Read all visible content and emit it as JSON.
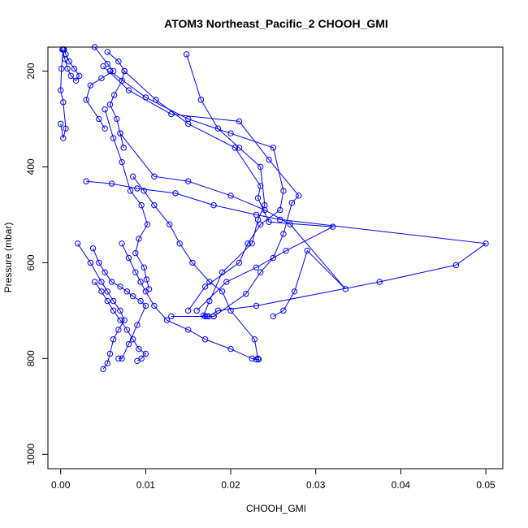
{
  "chart_data": {
    "type": "line",
    "title": "ATOM3 Northeast_Pacific_2 CHOOH_GMI",
    "xlabel": "CHOOH_GMI",
    "ylabel": "Pressure (mbar)",
    "xlim": [
      -0.0015,
      0.052
    ],
    "ylim": [
      1030,
      150
    ],
    "y_reversed": true,
    "x_ticks": [
      "0.00",
      "0.01",
      "0.02",
      "0.03",
      "0.04",
      "0.05"
    ],
    "x_tick_values": [
      0.0,
      0.01,
      0.02,
      0.03,
      0.04,
      0.05
    ],
    "y_ticks": [
      "200",
      "400",
      "600",
      "800",
      "1000"
    ],
    "y_tick_values": [
      200,
      400,
      600,
      800,
      1000
    ],
    "marker": "open-circle",
    "color": "#0000ff",
    "series": [
      {
        "x": [
          0.0002,
          0.0005,
          0.0008,
          0.0012,
          0.0018,
          0.0022,
          0.0016,
          0.001,
          0.0006,
          0.0004
        ],
        "y": [
          155,
          175,
          195,
          210,
          220,
          210,
          195,
          180,
          165,
          155
        ]
      },
      {
        "x": [
          0.0003,
          0.0001,
          0.0,
          0.0003,
          0.0006,
          0.0003,
          0.0
        ],
        "y": [
          155,
          195,
          240,
          265,
          320,
          340,
          310
        ]
      },
      {
        "x": [
          0.004,
          0.0055,
          0.0062,
          0.0048,
          0.0035,
          0.003,
          0.0045,
          0.0052
        ],
        "y": [
          150,
          185,
          200,
          215,
          230,
          260,
          300,
          320
        ]
      },
      {
        "x": [
          0.0055,
          0.0068,
          0.0075,
          0.0072,
          0.0063,
          0.0058,
          0.0066,
          0.007,
          0.0074
        ],
        "y": [
          160,
          180,
          200,
          220,
          250,
          270,
          300,
          330,
          360
        ]
      },
      {
        "x": [
          0.0148,
          0.0165,
          0.0185,
          0.021,
          0.0235,
          0.024,
          0.0232,
          0.0225,
          0.019,
          0.0175,
          0.0168,
          0.0172,
          0.018
        ],
        "y": [
          165,
          260,
          320,
          360,
          400,
          480,
          510,
          560,
          620,
          680,
          710,
          712,
          712
        ]
      },
      {
        "x": [
          0.0058,
          0.01,
          0.015,
          0.02,
          0.025,
          0.0262,
          0.0258,
          0.0235,
          0.022,
          0.021,
          0.017,
          0.015
        ],
        "y": [
          200,
          255,
          300,
          330,
          360,
          450,
          490,
          520,
          560,
          600,
          650,
          700
        ]
      },
      {
        "x": [
          0.005,
          0.008,
          0.013,
          0.021,
          0.0245,
          0.028,
          0.0272,
          0.0262,
          0.025,
          0.0235,
          0.0218,
          0.018,
          0.013
        ],
        "y": [
          190,
          240,
          290,
          305,
          385,
          460,
          475,
          540,
          590,
          620,
          665,
          712,
          712
        ]
      },
      {
        "x": [
          0.0075,
          0.0112,
          0.015,
          0.0205,
          0.0235,
          0.0232,
          0.0245,
          0.032,
          0.0265,
          0.023,
          0.0195,
          0.016
        ],
        "y": [
          200,
          260,
          310,
          360,
          440,
          465,
          515,
          525,
          575,
          610,
          640,
          700
        ]
      },
      {
        "x": [
          0.0052,
          0.0062,
          0.0072,
          0.0082,
          0.0095,
          0.0102,
          0.0092,
          0.0088,
          0.0098,
          0.0101,
          0.0104
        ],
        "y": [
          280,
          340,
          390,
          450,
          480,
          520,
          550,
          580,
          610,
          635,
          655
        ]
      },
      {
        "x": [
          0.003,
          0.006,
          0.009,
          0.0135,
          0.018,
          0.023,
          0.0258,
          0.05,
          0.0465,
          0.0375,
          0.023,
          0.0185,
          0.0174,
          0.017
        ],
        "y": [
          430,
          435,
          445,
          455,
          480,
          500,
          510,
          560,
          605,
          640,
          690,
          700,
          712,
          712
        ]
      },
      {
        "x": [
          0.007,
          0.011,
          0.015,
          0.02,
          0.024,
          0.027,
          0.0335,
          0.029,
          0.0275,
          0.0262,
          0.025
        ],
        "y": [
          330,
          420,
          430,
          460,
          490,
          520,
          655,
          575,
          660,
          700,
          712
        ]
      },
      {
        "x": [
          0.0085,
          0.0098,
          0.011,
          0.0128,
          0.014,
          0.0155,
          0.0175,
          0.019,
          0.02,
          0.0228,
          0.0232
        ],
        "y": [
          420,
          450,
          480,
          520,
          560,
          600,
          640,
          660,
          700,
          760,
          800
        ]
      },
      {
        "x": [
          0.0038,
          0.0045,
          0.0052,
          0.006,
          0.007,
          0.0078,
          0.0085,
          0.0094,
          0.01,
          0.009,
          0.008,
          0.0072,
          0.0068
        ],
        "y": [
          570,
          600,
          620,
          640,
          650,
          660,
          670,
          680,
          690,
          730,
          770,
          800,
          800
        ]
      },
      {
        "x": [
          0.0072,
          0.008,
          0.0088,
          0.0094,
          0.01,
          0.011,
          0.0125,
          0.015,
          0.017,
          0.02,
          0.0225,
          0.023,
          0.0233
        ],
        "y": [
          560,
          590,
          620,
          640,
          660,
          690,
          720,
          740,
          760,
          780,
          800,
          802,
          802
        ]
      },
      {
        "x": [
          0.002,
          0.0035,
          0.0048,
          0.0055,
          0.0062,
          0.007,
          0.0075,
          0.0068,
          0.0062,
          0.0058,
          0.0055,
          0.005
        ],
        "y": [
          560,
          600,
          640,
          660,
          680,
          700,
          720,
          740,
          760,
          790,
          810,
          822
        ]
      },
      {
        "x": [
          0.004,
          0.0048,
          0.0055,
          0.0062,
          0.007,
          0.0078,
          0.0085,
          0.0092,
          0.01,
          0.0095,
          0.009
        ],
        "y": [
          640,
          660,
          680,
          700,
          720,
          740,
          760,
          780,
          790,
          800,
          805
        ]
      }
    ]
  }
}
